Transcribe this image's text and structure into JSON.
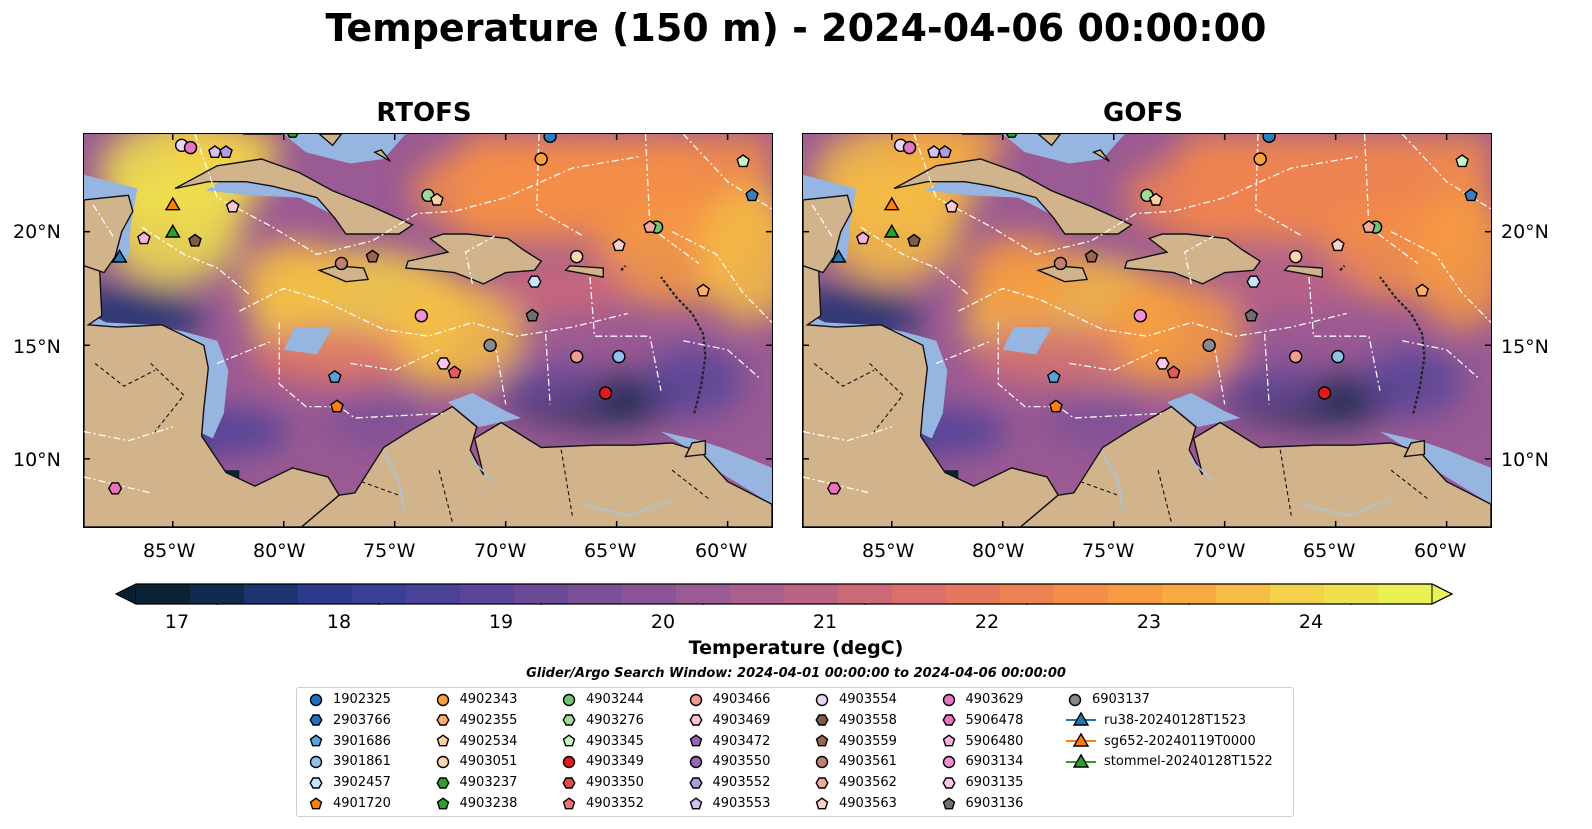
{
  "title": "Temperature (150 m) - 2024-04-06 00:00:00",
  "panels": [
    {
      "title": "RTOFS"
    },
    {
      "title": "GOFS"
    }
  ],
  "axes": {
    "lat_labels": [
      "20°N",
      "15°N",
      "10°N"
    ],
    "lon_labels": [
      "85°W",
      "80°W",
      "75°W",
      "70°W",
      "65°W",
      "60°W"
    ]
  },
  "colorbar": {
    "title": "Temperature (degC)",
    "ticks": [
      "17",
      "18",
      "19",
      "20",
      "21",
      "22",
      "23",
      "24"
    ],
    "min": 16.5,
    "max": 24.5,
    "colors": [
      "#0b2235",
      "#122a4c",
      "#1e3370",
      "#2b3a8a",
      "#3a3e96",
      "#4a4199",
      "#5a4598",
      "#6a4a97",
      "#7a5096",
      "#8a5596",
      "#9a5a94",
      "#aa5f8f",
      "#bb6384",
      "#cc6979",
      "#da6f6c",
      "#e5775e",
      "#ee8252",
      "#f48e48",
      "#f79b42",
      "#f8aa40",
      "#f6bd44",
      "#f3d149",
      "#f0e04c",
      "#eaf153"
    ],
    "under_color": "#0a1f30",
    "over_color": "#e9f45a"
  },
  "search_window": "Glider/Argo Search Window: 2024-04-01 00:00:00 to 2024-04-06 00:00:00",
  "colors": {
    "land": "#d1b48c",
    "shelf": "#96b6e1",
    "deep_ocean": "#0b2235"
  },
  "markers": [
    {
      "id": "6903136",
      "shape": "pentagon",
      "color": "#6f6f6f",
      "lon": -68.8,
      "lat": 16.3
    },
    {
      "id": "6903137",
      "shape": "circle",
      "color": "#8a8a8a",
      "lon": -70.7,
      "lat": 15.0
    },
    {
      "id": "6903134",
      "shape": "circle",
      "color": "#f48fd6",
      "lon": -73.8,
      "lat": 16.3
    },
    {
      "id": "6903135",
      "shape": "hexagon",
      "color": "#fbc6ea",
      "lon": -72.8,
      "lat": 14.2
    },
    {
      "id": "4903352",
      "shape": "pentagon",
      "color": "#e5585f",
      "lon": -72.3,
      "lat": 13.8
    },
    {
      "id": "4903349",
      "shape": "circle",
      "color": "#e31a1c",
      "lon": -65.5,
      "lat": 12.9
    },
    {
      "id": "3901861",
      "shape": "circle",
      "color": "#8ec2ea",
      "lon": -64.9,
      "lat": 14.5
    },
    {
      "id": "4903466",
      "shape": "circle",
      "color": "#f49a93",
      "lon": -66.8,
      "lat": 14.5
    },
    {
      "id": "3901686",
      "shape": "pentagon",
      "color": "#5aa0dc",
      "lon": -77.7,
      "lat": 13.6
    },
    {
      "id": "4901720",
      "shape": "pentagon",
      "color": "#ff7f0e",
      "lon": -77.6,
      "lat": 12.3
    },
    {
      "id": "4903561",
      "shape": "circle",
      "color": "#c08070",
      "lon": -77.4,
      "lat": 18.6
    },
    {
      "id": "4903559",
      "shape": "pentagon",
      "color": "#9b6553",
      "lon": -76.0,
      "lat": 18.9
    },
    {
      "id": "3902457",
      "shape": "hexagon",
      "color": "#c6e5fa",
      "lon": -68.7,
      "lat": 17.8
    },
    {
      "id": "4903051",
      "shape": "circle",
      "color": "#fdd6b2",
      "lon": -66.8,
      "lat": 18.9
    },
    {
      "id": "4903563",
      "shape": "pentagon",
      "color": "#fcd0c8",
      "lon": -64.9,
      "lat": 19.4
    },
    {
      "id": "4902355",
      "shape": "pentagon",
      "color": "#fdae6b",
      "lon": -61.1,
      "lat": 17.4
    },
    {
      "id": "4903244",
      "shape": "circle",
      "color": "#74c476",
      "lon": -63.2,
      "lat": 20.2
    },
    {
      "id": "4903562",
      "shape": "pentagon",
      "color": "#f5aa99",
      "lon": -63.5,
      "lat": 20.2
    },
    {
      "id": "4903345",
      "shape": "pentagon",
      "color": "#c7f5c2",
      "lon": -59.3,
      "lat": 23.1
    },
    {
      "id": "2903766",
      "shape": "pentagon",
      "color": "#3b7fc0",
      "lon": -58.9,
      "lat": 21.6
    },
    {
      "id": "1902325",
      "shape": "circle",
      "color": "#2b7fc0",
      "lon": -68.0,
      "lat": 24.2
    },
    {
      "id": "4902343",
      "shape": "circle",
      "color": "#f9a03f",
      "lon": -68.4,
      "lat": 23.2
    },
    {
      "id": "4903276",
      "shape": "circle",
      "color": "#a1d99b",
      "lon": -73.5,
      "lat": 21.6
    },
    {
      "id": "4902534",
      "shape": "pentagon",
      "color": "#fdd0a2",
      "lon": -73.1,
      "lat": 21.4
    },
    {
      "id": "4903469",
      "shape": "pentagon",
      "color": "#fbc9d2",
      "lon": -82.3,
      "lat": 21.1
    },
    {
      "id": "4903558",
      "shape": "pentagon",
      "color": "#7f5a44",
      "lon": -84.0,
      "lat": 19.6
    },
    {
      "id": "4903553",
      "shape": "pentagon",
      "color": "#d5c1f1",
      "lon": -83.1,
      "lat": 23.5
    },
    {
      "id": "4903552",
      "shape": "pentagon",
      "color": "#b39ae0",
      "lon": -82.6,
      "lat": 23.5
    },
    {
      "id": "4903554",
      "shape": "circle",
      "color": "#ead5f5",
      "lon": -84.6,
      "lat": 23.8
    },
    {
      "id": "4903629",
      "shape": "circle",
      "color": "#e377c2",
      "lon": -84.2,
      "lat": 23.7
    },
    {
      "id": "5906478",
      "shape": "hexagon",
      "color": "#f070c0",
      "lon": -87.6,
      "lat": 8.7
    },
    {
      "id": "5906480",
      "shape": "pentagon",
      "color": "#f7b3de",
      "lon": -86.3,
      "lat": 19.7
    },
    {
      "id": "4903237",
      "shape": "hexagon",
      "color": "#2ca02c",
      "lon": -79.6,
      "lat": 24.4
    },
    {
      "id": "ru38-20240128T1523",
      "shape": "triangle",
      "color": "#1f77b4",
      "lon": -87.4,
      "lat": 18.9
    },
    {
      "id": "sg652-20240119T0000",
      "shape": "triangle",
      "color": "#ff7f0e",
      "lon": -85.0,
      "lat": 21.2
    },
    {
      "id": "stommel-20240128T1522",
      "shape": "triangle",
      "color": "#2ca02c",
      "lon": -85.0,
      "lat": 20.0
    }
  ],
  "legend": [
    {
      "label": "1902325",
      "shape": "circle",
      "color": "#1f6fbf"
    },
    {
      "label": "2903766",
      "shape": "hexagon",
      "color": "#1f6fbf"
    },
    {
      "label": "3901686",
      "shape": "pentagon",
      "color": "#5aa0dc"
    },
    {
      "label": "3901861",
      "shape": "circle",
      "color": "#8ec2ea"
    },
    {
      "label": "3902457",
      "shape": "hexagon",
      "color": "#c6e5fa"
    },
    {
      "label": "4901720",
      "shape": "pentagon",
      "color": "#ff7f0e"
    },
    {
      "label": "4902343",
      "shape": "circle",
      "color": "#f9a03f"
    },
    {
      "label": "4902355",
      "shape": "hexagon",
      "color": "#fdae6b"
    },
    {
      "label": "4902534",
      "shape": "pentagon",
      "color": "#fdd0a2"
    },
    {
      "label": "4903051",
      "shape": "circle",
      "color": "#fdd6b2"
    },
    {
      "label": "4903237",
      "shape": "hexagon",
      "color": "#2ca02c"
    },
    {
      "label": "4903238",
      "shape": "pentagon",
      "color": "#2ca02c"
    },
    {
      "label": "4903244",
      "shape": "circle",
      "color": "#74c476"
    },
    {
      "label": "4903276",
      "shape": "hexagon",
      "color": "#a1d99b"
    },
    {
      "label": "4903345",
      "shape": "pentagon",
      "color": "#c7f5c2"
    },
    {
      "label": "4903349",
      "shape": "circle",
      "color": "#e31a1c"
    },
    {
      "label": "4903350",
      "shape": "hexagon",
      "color": "#e34a4a"
    },
    {
      "label": "4903352",
      "shape": "pentagon",
      "color": "#f0707a"
    },
    {
      "label": "4903466",
      "shape": "circle",
      "color": "#f49a93"
    },
    {
      "label": "4903469",
      "shape": "hexagon",
      "color": "#fbc4c8"
    },
    {
      "label": "4903472",
      "shape": "pentagon",
      "color": "#9467bd"
    },
    {
      "label": "4903550",
      "shape": "circle",
      "color": "#9467bd"
    },
    {
      "label": "4903552",
      "shape": "hexagon",
      "color": "#b39ae0"
    },
    {
      "label": "4903553",
      "shape": "pentagon",
      "color": "#d5c1f1"
    },
    {
      "label": "4903554",
      "shape": "circle",
      "color": "#ead5f5"
    },
    {
      "label": "4903558",
      "shape": "hexagon",
      "color": "#7f5a44"
    },
    {
      "label": "4903559",
      "shape": "pentagon",
      "color": "#9b6553"
    },
    {
      "label": "4903561",
      "shape": "circle",
      "color": "#c08070"
    },
    {
      "label": "4903562",
      "shape": "hexagon",
      "color": "#f5aa99"
    },
    {
      "label": "4903563",
      "shape": "pentagon",
      "color": "#fcd0c8"
    },
    {
      "label": "4903629",
      "shape": "circle",
      "color": "#e377c2"
    },
    {
      "label": "5906478",
      "shape": "hexagon",
      "color": "#f070c0"
    },
    {
      "label": "5906480",
      "shape": "pentagon",
      "color": "#f7b3de"
    },
    {
      "label": "6903134",
      "shape": "circle",
      "color": "#f48fd6"
    },
    {
      "label": "6903135",
      "shape": "hexagon",
      "color": "#fbc6ea"
    },
    {
      "label": "6903136",
      "shape": "pentagon",
      "color": "#6f6f6f"
    },
    {
      "label": "6903137",
      "shape": "circle",
      "color": "#8a8a8a"
    },
    {
      "label": "ru38-20240128T1523",
      "shape": "triangle",
      "color": "#1f77b4"
    },
    {
      "label": "sg652-20240119T0000",
      "shape": "triangle",
      "color": "#ff7f0e"
    },
    {
      "label": "stommel-20240128T1522",
      "shape": "triangle",
      "color": "#2ca02c"
    }
  ]
}
